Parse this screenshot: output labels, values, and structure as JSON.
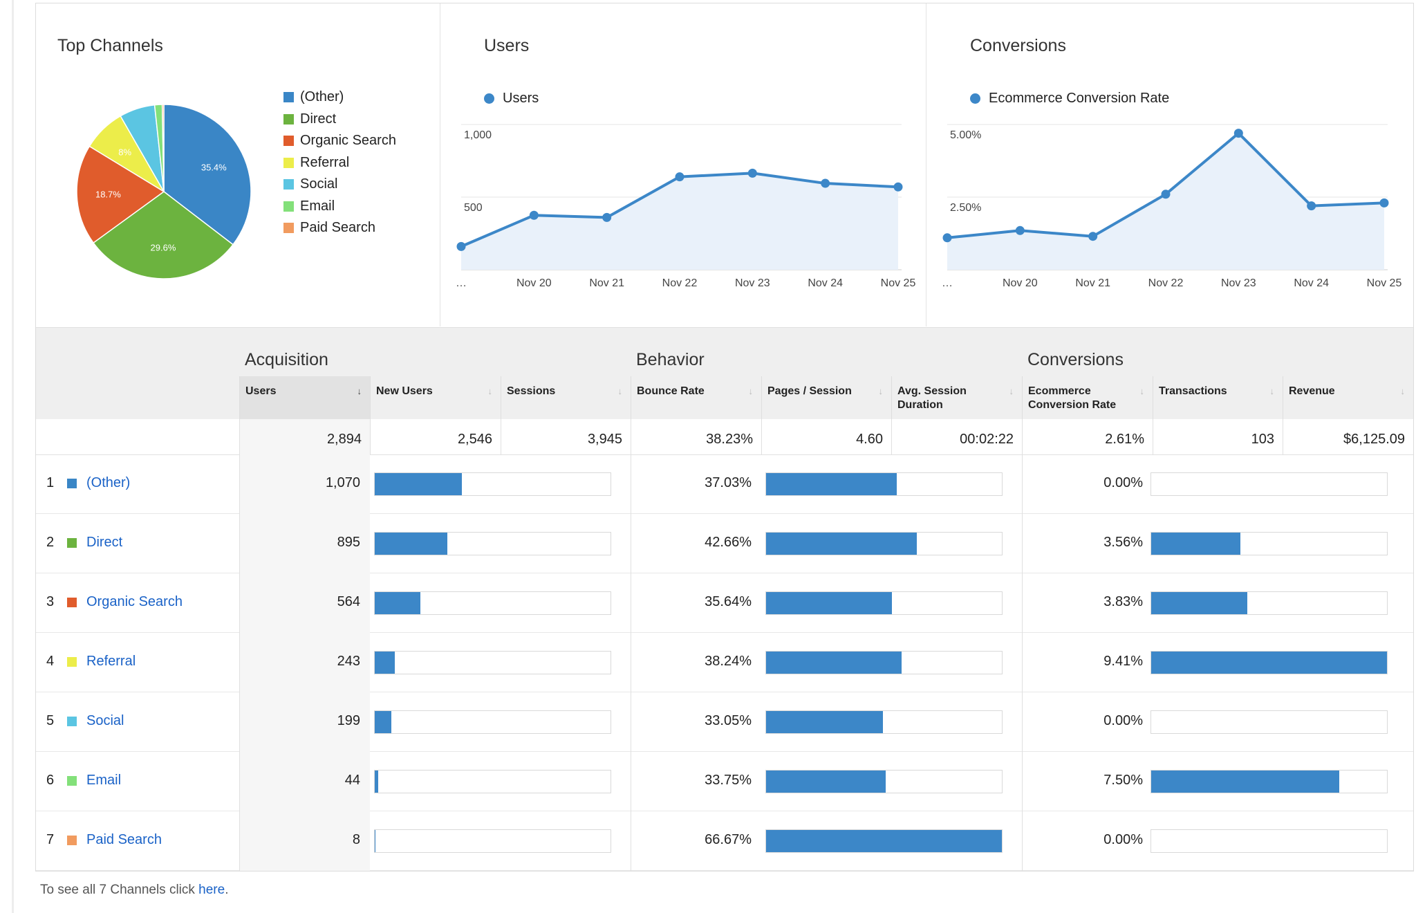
{
  "colors": {
    "accent": "#3c87c8",
    "link": "#1a62c7",
    "channels": [
      "#3a86c6",
      "#6cb33f",
      "#e05c2c",
      "#eced4a",
      "#5bc5e2",
      "#83e07a",
      "#f19b5f"
    ]
  },
  "top_channels": {
    "title": "Top Channels",
    "legend": [
      "(Other)",
      "Direct",
      "Organic Search",
      "Referral",
      "Social",
      "Email",
      "Paid Search"
    ]
  },
  "users_chart": {
    "title": "Users",
    "legend": "Users"
  },
  "conversions_chart": {
    "title": "Conversions",
    "legend": "Ecommerce Conversion Rate"
  },
  "chart_data": [
    {
      "type": "pie",
      "title": "Top Channels",
      "labels": [
        "(Other)",
        "Direct",
        "Organic Search",
        "Referral",
        "Social",
        "Email",
        "Paid Search"
      ],
      "values": [
        35.4,
        29.6,
        18.7,
        8.0,
        6.6,
        1.4,
        0.3
      ],
      "slice_labels": [
        "35.4%",
        "29.6%",
        "18.7%",
        "8%",
        "",
        "",
        ""
      ]
    },
    {
      "type": "area",
      "title": "Users",
      "series": [
        {
          "name": "Users",
          "values": [
            160,
            375,
            360,
            640,
            665,
            595,
            570
          ]
        }
      ],
      "categories": [
        "…",
        "Nov 20",
        "Nov 21",
        "Nov 22",
        "Nov 23",
        "Nov 24",
        "Nov 25"
      ],
      "yticks": [
        "1,000",
        "500"
      ],
      "ylim": [
        0,
        1000
      ],
      "grid": true
    },
    {
      "type": "area",
      "title": "Conversions",
      "series": [
        {
          "name": "Ecommerce Conversion Rate",
          "values": [
            1.1,
            1.35,
            1.15,
            2.6,
            4.7,
            2.2,
            2.3
          ]
        }
      ],
      "categories": [
        "…",
        "Nov 20",
        "Nov 21",
        "Nov 22",
        "Nov 23",
        "Nov 24",
        "Nov 25"
      ],
      "yticks": [
        "5.00%",
        "2.50%"
      ],
      "ylim": [
        0,
        5
      ],
      "grid": true
    }
  ],
  "table": {
    "groups": {
      "acquisition": "Acquisition",
      "behavior": "Behavior",
      "conversions": "Conversions"
    },
    "headers": {
      "users": "Users",
      "new_users": "New Users",
      "sessions": "Sessions",
      "bounce_rate": "Bounce Rate",
      "pages_session": "Pages / Session",
      "avg_session": "Avg. Session Duration",
      "conv_rate": "Ecommerce Conversion Rate",
      "transactions": "Transactions",
      "revenue": "Revenue"
    },
    "sort_desc_icon": "↓",
    "sort_icon": "↓",
    "totals": {
      "users": "2,894",
      "new_users": "2,546",
      "sessions": "3,945",
      "bounce_rate": "38.23%",
      "pages_session": "4.60",
      "avg_session": "00:02:22",
      "conv_rate": "2.61%",
      "transactions": "103",
      "revenue": "$6,125.09"
    },
    "rows": [
      {
        "num": "1",
        "channel": "(Other)",
        "users": "1,070",
        "users_share": 0.37,
        "bounce": "37.03%",
        "bounce_share": 0.555,
        "conv": "0.00%",
        "conv_share": 0.0
      },
      {
        "num": "2",
        "channel": "Direct",
        "users": "895",
        "users_share": 0.309,
        "bounce": "42.66%",
        "bounce_share": 0.64,
        "conv": "3.56%",
        "conv_share": 0.378
      },
      {
        "num": "3",
        "channel": "Organic Search",
        "users": "564",
        "users_share": 0.195,
        "bounce": "35.64%",
        "bounce_share": 0.535,
        "conv": "3.83%",
        "conv_share": 0.407
      },
      {
        "num": "4",
        "channel": "Referral",
        "users": "243",
        "users_share": 0.084,
        "bounce": "38.24%",
        "bounce_share": 0.574,
        "conv": "9.41%",
        "conv_share": 1.0
      },
      {
        "num": "5",
        "channel": "Social",
        "users": "199",
        "users_share": 0.069,
        "bounce": "33.05%",
        "bounce_share": 0.496,
        "conv": "0.00%",
        "conv_share": 0.0
      },
      {
        "num": "6",
        "channel": "Email",
        "users": "44",
        "users_share": 0.015,
        "bounce": "33.75%",
        "bounce_share": 0.506,
        "conv": "7.50%",
        "conv_share": 0.797
      },
      {
        "num": "7",
        "channel": "Paid Search",
        "users": "8",
        "users_share": 0.003,
        "bounce": "66.67%",
        "bounce_share": 1.0,
        "conv": "0.00%",
        "conv_share": 0.0
      }
    ]
  },
  "footer": {
    "prefix": "To see all 7 Channels click ",
    "link": "here",
    "suffix": "."
  }
}
